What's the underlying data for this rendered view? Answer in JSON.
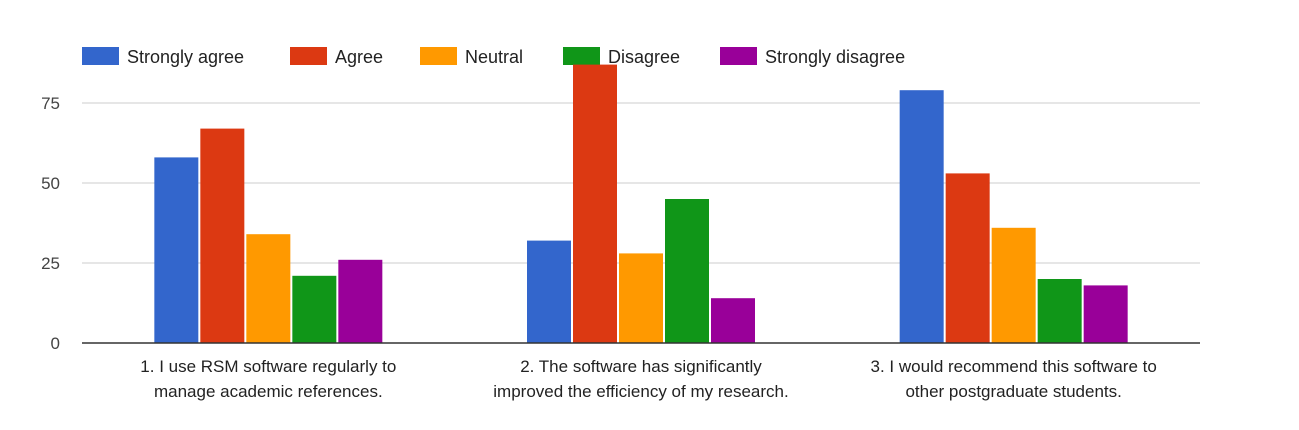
{
  "chart_data": {
    "type": "bar",
    "title": "",
    "xlabel": "",
    "ylabel": "",
    "ylim": [
      0,
      87
    ],
    "yticks": [
      0,
      25,
      50,
      75
    ],
    "grid": true,
    "legend_position": "top-left",
    "categories": [
      [
        "1. I use RSM software regularly to",
        "manage academic references."
      ],
      [
        "2. The software has significantly",
        "improved the efficiency of my research."
      ],
      [
        "3. I would recommend this software to",
        "other postgraduate students."
      ]
    ],
    "series": [
      {
        "name": "Strongly agree",
        "color": "#3366cc",
        "values": [
          58,
          32,
          79
        ]
      },
      {
        "name": "Agree",
        "color": "#dc3912",
        "values": [
          67,
          87,
          53
        ]
      },
      {
        "name": "Neutral",
        "color": "#ff9900",
        "values": [
          34,
          28,
          36
        ]
      },
      {
        "name": "Disagree",
        "color": "#109618",
        "values": [
          21,
          45,
          20
        ]
      },
      {
        "name": "Strongly disagree",
        "color": "#990099",
        "values": [
          26,
          14,
          18
        ]
      }
    ]
  }
}
